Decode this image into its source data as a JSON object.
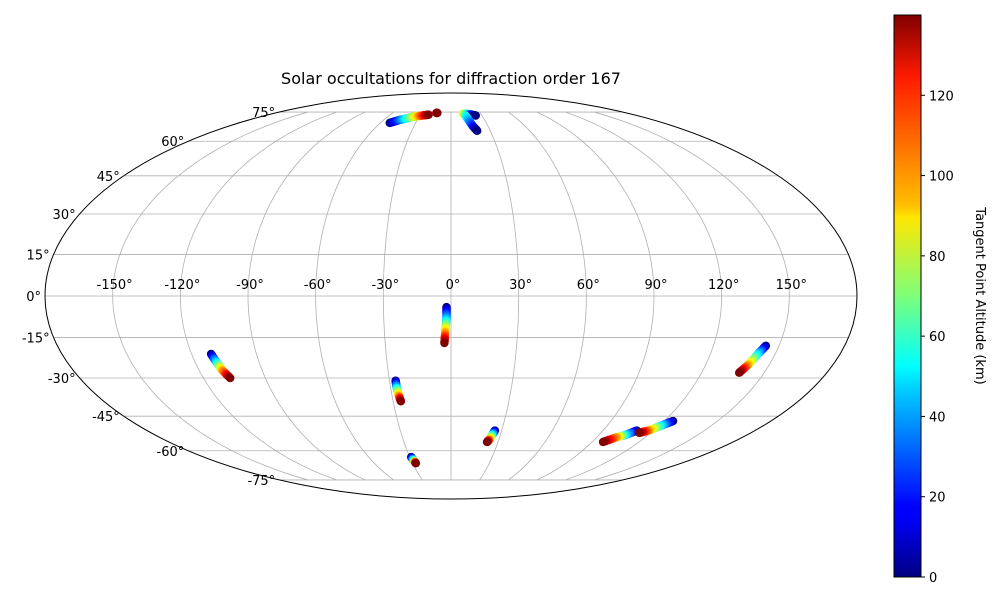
{
  "chart_data": {
    "type": "scatter",
    "projection": "mollweide",
    "title": "Solar occultations for diffraction order 167",
    "grid": true,
    "x_ticks": [
      "-150°",
      "-120°",
      "-90°",
      "-60°",
      "-30°",
      "0°",
      "30°",
      "60°",
      "90°",
      "120°",
      "150°"
    ],
    "y_ticks": [
      "-75°",
      "-60°",
      "-45°",
      "-30°",
      "-15°",
      "0°",
      "15°",
      "30°",
      "45°",
      "60°",
      "75°"
    ],
    "colorbar": {
      "label": "Tangent Point Altitude (km)",
      "colormap": "jet",
      "range": [
        0,
        140
      ],
      "ticks": [
        "0",
        "20",
        "40",
        "60",
        "80",
        "100",
        "120"
      ]
    },
    "tracks": [
      {
        "lon": [
          -52,
          -46,
          -40,
          -34,
          -28,
          -22
        ],
        "lat": [
          69,
          70.5,
          71.5,
          72.5,
          73,
          73.5
        ],
        "alt": [
          0,
          28,
          56,
          84,
          112,
          140
        ]
      },
      {
        "lon": [
          -15,
          -14
        ],
        "lat": [
          74.5,
          74.5
        ],
        "alt": [
          130,
          140
        ]
      },
      {
        "lon": [
          12,
          16,
          20,
          24
        ],
        "lat": [
          74,
          74,
          73.5,
          73
        ],
        "alt": [
          90,
          60,
          20,
          0
        ]
      },
      {
        "lon": [
          14,
          16,
          18,
          20
        ],
        "lat": [
          73,
          70,
          67,
          65
        ],
        "alt": [
          60,
          40,
          20,
          0
        ]
      },
      {
        "lon": [
          -2,
          -2,
          -2.5,
          -3
        ],
        "lat": [
          -4,
          -8,
          -12,
          -17
        ],
        "alt": [
          0,
          40,
          85,
          140
        ]
      },
      {
        "lon": [
          -111,
          -110,
          -109,
          -107
        ],
        "lat": [
          -21,
          -24,
          -27,
          -30
        ],
        "alt": [
          0,
          45,
          95,
          140
        ]
      },
      {
        "lon": [
          -27,
          -27,
          -26.5,
          -26
        ],
        "lat": [
          -31,
          -34,
          -37,
          -39
        ],
        "alt": [
          0,
          50,
          100,
          140
        ]
      },
      {
        "lon": [
          -29,
          -28,
          -27.5
        ],
        "lat": [
          -63,
          -65,
          -66
        ],
        "alt": [
          0,
          70,
          140
        ]
      },
      {
        "lon": [
          26,
          25,
          24,
          23
        ],
        "lat": [
          -51,
          -53,
          -55,
          -56
        ],
        "alt": [
          0,
          50,
          100,
          140
        ]
      },
      {
        "lon": [
          144,
          142,
          140,
          138
        ],
        "lat": [
          -18,
          -21,
          -25,
          -28
        ],
        "alt": [
          0,
          45,
          95,
          140
        ]
      },
      {
        "lon": [
          110,
          106,
          102,
          97
        ],
        "lat": [
          -51,
          -53,
          -54,
          -56
        ],
        "alt": [
          0,
          50,
          100,
          140
        ]
      },
      {
        "lon": [
          125,
          121,
          117,
          113
        ],
        "lat": [
          -47,
          -49,
          -51,
          -52
        ],
        "alt": [
          0,
          50,
          100,
          140
        ]
      }
    ]
  }
}
